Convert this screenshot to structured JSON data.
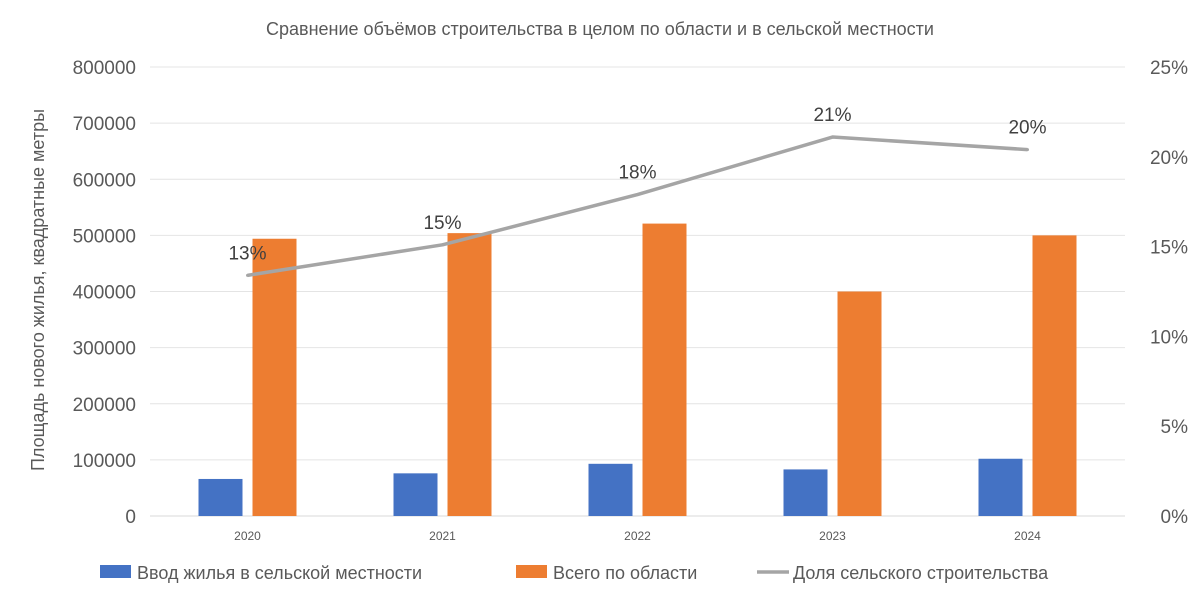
{
  "chart_data": {
    "type": "bar",
    "title": "Сравнение объёмов  строительства в целом по области и в сельской местности",
    "ylabel": "Площадь нового жилья, квадратные метры",
    "categories": [
      "2020",
      "2021",
      "2022",
      "2023",
      "2024"
    ],
    "ylim": [
      0,
      800000
    ],
    "y_ticks": [
      "0",
      "100000",
      "200000",
      "300000",
      "400000",
      "500000",
      "600000",
      "700000",
      "800000"
    ],
    "y2lim": [
      0,
      0.25
    ],
    "y2_ticks": [
      "0%",
      "5%",
      "10%",
      "15%",
      "20%",
      "25%"
    ],
    "grid": true,
    "legend_position": "bottom",
    "series": [
      {
        "name": "Ввод жилья в сельской местности",
        "type": "bar",
        "axis": "left",
        "color": "#4472C4",
        "values": [
          66000,
          76000,
          93000,
          83000,
          102000
        ]
      },
      {
        "name": "Всего по области",
        "type": "bar",
        "axis": "left",
        "color": "#ED7D31",
        "values": [
          494000,
          504000,
          521000,
          400000,
          500000
        ]
      },
      {
        "name": "Доля сельского строительства",
        "type": "line",
        "axis": "right",
        "color": "#A5A5A5",
        "values": [
          0.134,
          0.151,
          0.179,
          0.211,
          0.204
        ],
        "data_labels": [
          "13%",
          "15%",
          "18%",
          "21%",
          "20%"
        ]
      }
    ]
  }
}
